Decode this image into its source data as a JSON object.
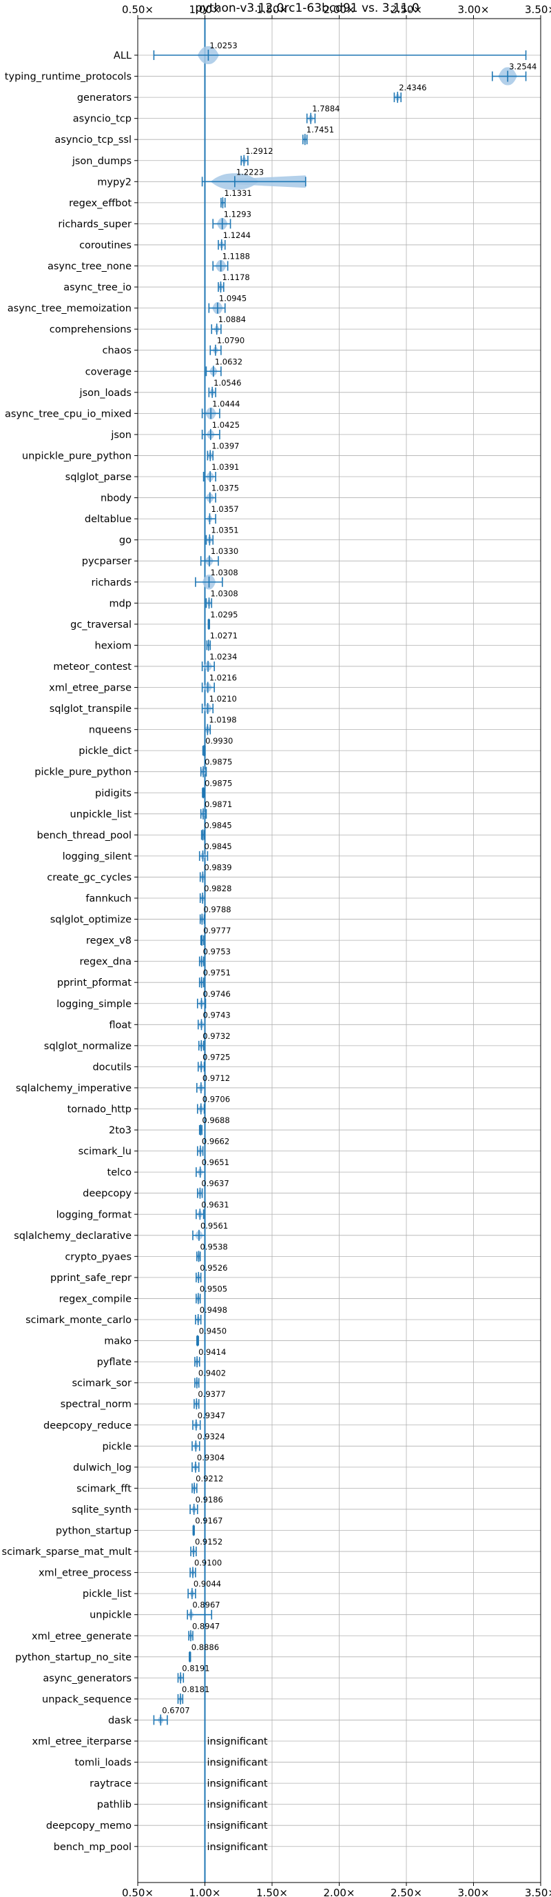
{
  "chart_data": {
    "type": "violin",
    "title": "python-v3.12.0rc1-63bcd91 vs. 3.11.0",
    "xlim": [
      0.5,
      3.5
    ],
    "ref_line": 1.0,
    "xticks": [
      0.5,
      1.0,
      1.5,
      2.0,
      2.5,
      3.0,
      3.5
    ],
    "xtick_labels": [
      "0.50×",
      "1.00×",
      "1.50×",
      "2.00×",
      "2.50×",
      "3.00×",
      "3.50×"
    ],
    "grid": true,
    "insignificant_label": "insignificant",
    "colors": {
      "fill": "#a6c8e6",
      "line": "#1f77b4",
      "ref": "#1f77b4",
      "grid": "#b0b0b0"
    },
    "benchmarks": [
      {
        "name": "ALL",
        "value": 1.0253,
        "label": "1.0253",
        "min": 0.62,
        "max": 3.39,
        "spread": 0.08
      },
      {
        "name": "typing_runtime_protocols",
        "value": 3.2544,
        "label": "3.2544",
        "min": 3.14,
        "max": 3.39,
        "spread": 0.07
      },
      {
        "name": "generators",
        "value": 2.4346,
        "label": "2.4346",
        "min": 2.41,
        "max": 2.46,
        "spread": 0.02
      },
      {
        "name": "asyncio_tcp",
        "value": 1.7884,
        "label": "1.7884",
        "min": 1.76,
        "max": 1.82,
        "spread": 0.02
      },
      {
        "name": "asyncio_tcp_ssl",
        "value": 1.7451,
        "label": "1.7451",
        "min": 1.73,
        "max": 1.76,
        "spread": 0.01
      },
      {
        "name": "json_dumps",
        "value": 1.2912,
        "label": "1.2912",
        "min": 1.27,
        "max": 1.32,
        "spread": 0.02
      },
      {
        "name": "mypy2",
        "value": 1.2223,
        "label": "1.2223",
        "min": 0.98,
        "max": 1.75,
        "spread": 0.18
      },
      {
        "name": "regex_effbot",
        "value": 1.1331,
        "label": "1.1331",
        "min": 1.12,
        "max": 1.15,
        "spread": 0.01
      },
      {
        "name": "richards_super",
        "value": 1.1293,
        "label": "1.1293",
        "min": 1.06,
        "max": 1.19,
        "spread": 0.04
      },
      {
        "name": "coroutines",
        "value": 1.1244,
        "label": "1.1244",
        "min": 1.1,
        "max": 1.15,
        "spread": 0.02
      },
      {
        "name": "async_tree_none",
        "value": 1.1188,
        "label": "1.1188",
        "min": 1.06,
        "max": 1.17,
        "spread": 0.04
      },
      {
        "name": "async_tree_io",
        "value": 1.1178,
        "label": "1.1178",
        "min": 1.1,
        "max": 1.14,
        "spread": 0.02
      },
      {
        "name": "async_tree_memoization",
        "value": 1.0945,
        "label": "1.0945",
        "min": 1.03,
        "max": 1.15,
        "spread": 0.04
      },
      {
        "name": "comprehensions",
        "value": 1.0884,
        "label": "1.0884",
        "min": 1.05,
        "max": 1.12,
        "spread": 0.02
      },
      {
        "name": "chaos",
        "value": 1.079,
        "label": "1.0790",
        "min": 1.04,
        "max": 1.12,
        "spread": 0.02
      },
      {
        "name": "coverage",
        "value": 1.0632,
        "label": "1.0632",
        "min": 1.01,
        "max": 1.12,
        "spread": 0.03
      },
      {
        "name": "json_loads",
        "value": 1.0546,
        "label": "1.0546",
        "min": 1.03,
        "max": 1.08,
        "spread": 0.02
      },
      {
        "name": "async_tree_cpu_io_mixed",
        "value": 1.0444,
        "label": "1.0444",
        "min": 0.98,
        "max": 1.11,
        "spread": 0.04
      },
      {
        "name": "json",
        "value": 1.0425,
        "label": "1.0425",
        "min": 0.98,
        "max": 1.11,
        "spread": 0.03
      },
      {
        "name": "unpickle_pure_python",
        "value": 1.0397,
        "label": "1.0397",
        "min": 1.02,
        "max": 1.06,
        "spread": 0.02
      },
      {
        "name": "sqlglot_parse",
        "value": 1.0391,
        "label": "1.0391",
        "min": 0.99,
        "max": 1.08,
        "spread": 0.03
      },
      {
        "name": "nbody",
        "value": 1.0375,
        "label": "1.0375",
        "min": 1.0,
        "max": 1.08,
        "spread": 0.03
      },
      {
        "name": "deltablue",
        "value": 1.0357,
        "label": "1.0357",
        "min": 1.0,
        "max": 1.08,
        "spread": 0.02
      },
      {
        "name": "go",
        "value": 1.0351,
        "label": "1.0351",
        "min": 1.01,
        "max": 1.06,
        "spread": 0.02
      },
      {
        "name": "pycparser",
        "value": 1.033,
        "label": "1.0330",
        "min": 0.97,
        "max": 1.1,
        "spread": 0.03
      },
      {
        "name": "richards",
        "value": 1.0308,
        "label": "1.0308",
        "min": 0.93,
        "max": 1.13,
        "spread": 0.05
      },
      {
        "name": "mdp",
        "value": 1.0308,
        "label": "1.0308",
        "min": 1.01,
        "max": 1.05,
        "spread": 0.015
      },
      {
        "name": "gc_traversal",
        "value": 1.0295,
        "label": "1.0295",
        "min": 1.025,
        "max": 1.034,
        "spread": 0.004
      },
      {
        "name": "hexiom",
        "value": 1.0271,
        "label": "1.0271",
        "min": 1.015,
        "max": 1.04,
        "spread": 0.008
      },
      {
        "name": "meteor_contest",
        "value": 1.0234,
        "label": "1.0234",
        "min": 0.98,
        "max": 1.07,
        "spread": 0.03
      },
      {
        "name": "xml_etree_parse",
        "value": 1.0216,
        "label": "1.0216",
        "min": 0.98,
        "max": 1.07,
        "spread": 0.03
      },
      {
        "name": "sqlglot_transpile",
        "value": 1.021,
        "label": "1.0210",
        "min": 0.98,
        "max": 1.06,
        "spread": 0.03
      },
      {
        "name": "nqueens",
        "value": 1.0198,
        "label": "1.0198",
        "min": 1.0,
        "max": 1.04,
        "spread": 0.02
      },
      {
        "name": "pickle_dict",
        "value": 0.993,
        "label": "0.9930",
        "min": 0.985,
        "max": 1.002,
        "spread": 0.006
      },
      {
        "name": "pickle_pure_python",
        "value": 0.9875,
        "label": "0.9875",
        "min": 0.97,
        "max": 1.01,
        "spread": 0.02
      },
      {
        "name": "pidigits",
        "value": 0.9875,
        "label": "0.9875",
        "min": 0.982,
        "max": 0.993,
        "spread": 0.005
      },
      {
        "name": "unpickle_list",
        "value": 0.9871,
        "label": "0.9871",
        "min": 0.97,
        "max": 1.01,
        "spread": 0.015
      },
      {
        "name": "bench_thread_pool",
        "value": 0.9845,
        "label": "0.9845",
        "min": 0.975,
        "max": 0.995,
        "spread": 0.008
      },
      {
        "name": "logging_silent",
        "value": 0.9845,
        "label": "0.9845",
        "min": 0.96,
        "max": 1.02,
        "spread": 0.02
      },
      {
        "name": "create_gc_cycles",
        "value": 0.9839,
        "label": "0.9839",
        "min": 0.965,
        "max": 1.0,
        "spread": 0.015
      },
      {
        "name": "fannkuch",
        "value": 0.9828,
        "label": "0.9828",
        "min": 0.965,
        "max": 1.0,
        "spread": 0.015
      },
      {
        "name": "sqlglot_optimize",
        "value": 0.9788,
        "label": "0.9788",
        "min": 0.965,
        "max": 0.995,
        "spread": 0.012
      },
      {
        "name": "regex_v8",
        "value": 0.9777,
        "label": "0.9777",
        "min": 0.97,
        "max": 0.99,
        "spread": 0.008
      },
      {
        "name": "regex_dna",
        "value": 0.9753,
        "label": "0.9753",
        "min": 0.96,
        "max": 0.99,
        "spread": 0.012
      },
      {
        "name": "pprint_pformat",
        "value": 0.9751,
        "label": "0.9751",
        "min": 0.96,
        "max": 0.99,
        "spread": 0.012
      },
      {
        "name": "logging_simple",
        "value": 0.9746,
        "label": "0.9746",
        "min": 0.945,
        "max": 1.005,
        "spread": 0.02
      },
      {
        "name": "float",
        "value": 0.9743,
        "label": "0.9743",
        "min": 0.95,
        "max": 1.0,
        "spread": 0.02
      },
      {
        "name": "sqlglot_normalize",
        "value": 0.9732,
        "label": "0.9732",
        "min": 0.955,
        "max": 0.99,
        "spread": 0.014
      },
      {
        "name": "docutils",
        "value": 0.9725,
        "label": "0.9725",
        "min": 0.95,
        "max": 0.995,
        "spread": 0.018
      },
      {
        "name": "sqlalchemy_imperative",
        "value": 0.9712,
        "label": "0.9712",
        "min": 0.94,
        "max": 1.0,
        "spread": 0.022
      },
      {
        "name": "tornado_http",
        "value": 0.9706,
        "label": "0.9706",
        "min": 0.945,
        "max": 0.995,
        "spread": 0.02
      },
      {
        "name": "2to3",
        "value": 0.9688,
        "label": "0.9688",
        "min": 0.96,
        "max": 0.978,
        "spread": 0.008
      },
      {
        "name": "scimark_lu",
        "value": 0.9662,
        "label": "0.9662",
        "min": 0.945,
        "max": 0.985,
        "spread": 0.016
      },
      {
        "name": "telco",
        "value": 0.9651,
        "label": "0.9651",
        "min": 0.935,
        "max": 1.0,
        "spread": 0.022
      },
      {
        "name": "deepcopy",
        "value": 0.9637,
        "label": "0.9637",
        "min": 0.945,
        "max": 0.98,
        "spread": 0.015
      },
      {
        "name": "logging_format",
        "value": 0.9631,
        "label": "0.9631",
        "min": 0.935,
        "max": 0.99,
        "spread": 0.02
      },
      {
        "name": "sqlalchemy_declarative",
        "value": 0.9561,
        "label": "0.9561",
        "min": 0.91,
        "max": 1.0,
        "spread": 0.03
      },
      {
        "name": "crypto_pyaes",
        "value": 0.9538,
        "label": "0.9538",
        "min": 0.94,
        "max": 0.965,
        "spread": 0.012
      },
      {
        "name": "pprint_safe_repr",
        "value": 0.9526,
        "label": "0.9526",
        "min": 0.935,
        "max": 0.97,
        "spread": 0.014
      },
      {
        "name": "regex_compile",
        "value": 0.9505,
        "label": "0.9505",
        "min": 0.935,
        "max": 0.965,
        "spread": 0.012
      },
      {
        "name": "scimark_monte_carlo",
        "value": 0.9498,
        "label": "0.9498",
        "min": 0.93,
        "max": 0.97,
        "spread": 0.014
      },
      {
        "name": "mako",
        "value": 0.945,
        "label": "0.9450",
        "min": 0.94,
        "max": 0.952,
        "spread": 0.005
      },
      {
        "name": "pyflate",
        "value": 0.9414,
        "label": "0.9414",
        "min": 0.925,
        "max": 0.96,
        "spread": 0.014
      },
      {
        "name": "scimark_sor",
        "value": 0.9402,
        "label": "0.9402",
        "min": 0.925,
        "max": 0.955,
        "spread": 0.012
      },
      {
        "name": "spectral_norm",
        "value": 0.9377,
        "label": "0.9377",
        "min": 0.92,
        "max": 0.955,
        "spread": 0.014
      },
      {
        "name": "deepcopy_reduce",
        "value": 0.9347,
        "label": "0.9347",
        "min": 0.91,
        "max": 0.965,
        "spread": 0.018
      },
      {
        "name": "pickle",
        "value": 0.9324,
        "label": "0.9324",
        "min": 0.905,
        "max": 0.96,
        "spread": 0.018
      },
      {
        "name": "dulwich_log",
        "value": 0.9304,
        "label": "0.9304",
        "min": 0.905,
        "max": 0.955,
        "spread": 0.018
      },
      {
        "name": "scimark_fft",
        "value": 0.9212,
        "label": "0.9212",
        "min": 0.905,
        "max": 0.94,
        "spread": 0.014
      },
      {
        "name": "sqlite_synth",
        "value": 0.9186,
        "label": "0.9186",
        "min": 0.89,
        "max": 0.945,
        "spread": 0.018
      },
      {
        "name": "python_startup",
        "value": 0.9167,
        "label": "0.9167",
        "min": 0.912,
        "max": 0.921,
        "spread": 0.004
      },
      {
        "name": "scimark_sparse_mat_mult",
        "value": 0.9152,
        "label": "0.9152",
        "min": 0.895,
        "max": 0.935,
        "spread": 0.014
      },
      {
        "name": "xml_etree_process",
        "value": 0.91,
        "label": "0.9100",
        "min": 0.89,
        "max": 0.93,
        "spread": 0.014
      },
      {
        "name": "pickle_list",
        "value": 0.9044,
        "label": "0.9044",
        "min": 0.875,
        "max": 0.93,
        "spread": 0.018
      },
      {
        "name": "unpickle",
        "value": 0.8967,
        "label": "0.8967",
        "min": 0.87,
        "max": 1.05,
        "spread": 0.02
      },
      {
        "name": "xml_etree_generate",
        "value": 0.8947,
        "label": "0.8947",
        "min": 0.88,
        "max": 0.91,
        "spread": 0.012
      },
      {
        "name": "python_startup_no_site",
        "value": 0.8886,
        "label": "0.8886",
        "min": 0.884,
        "max": 0.893,
        "spread": 0.004
      },
      {
        "name": "async_generators",
        "value": 0.8191,
        "label": "0.8191",
        "min": 0.8,
        "max": 0.84,
        "spread": 0.014
      },
      {
        "name": "unpack_sequence",
        "value": 0.8181,
        "label": "0.8181",
        "min": 0.8,
        "max": 0.835,
        "spread": 0.012
      },
      {
        "name": "dask",
        "value": 0.6707,
        "label": "0.6707",
        "min": 0.62,
        "max": 0.72,
        "spread": 0.022
      },
      {
        "name": "xml_etree_iterparse",
        "insignificant": true
      },
      {
        "name": "tomli_loads",
        "insignificant": true
      },
      {
        "name": "raytrace",
        "insignificant": true
      },
      {
        "name": "pathlib",
        "insignificant": true
      },
      {
        "name": "deepcopy_memo",
        "insignificant": true
      },
      {
        "name": "bench_mp_pool",
        "insignificant": true
      }
    ]
  }
}
